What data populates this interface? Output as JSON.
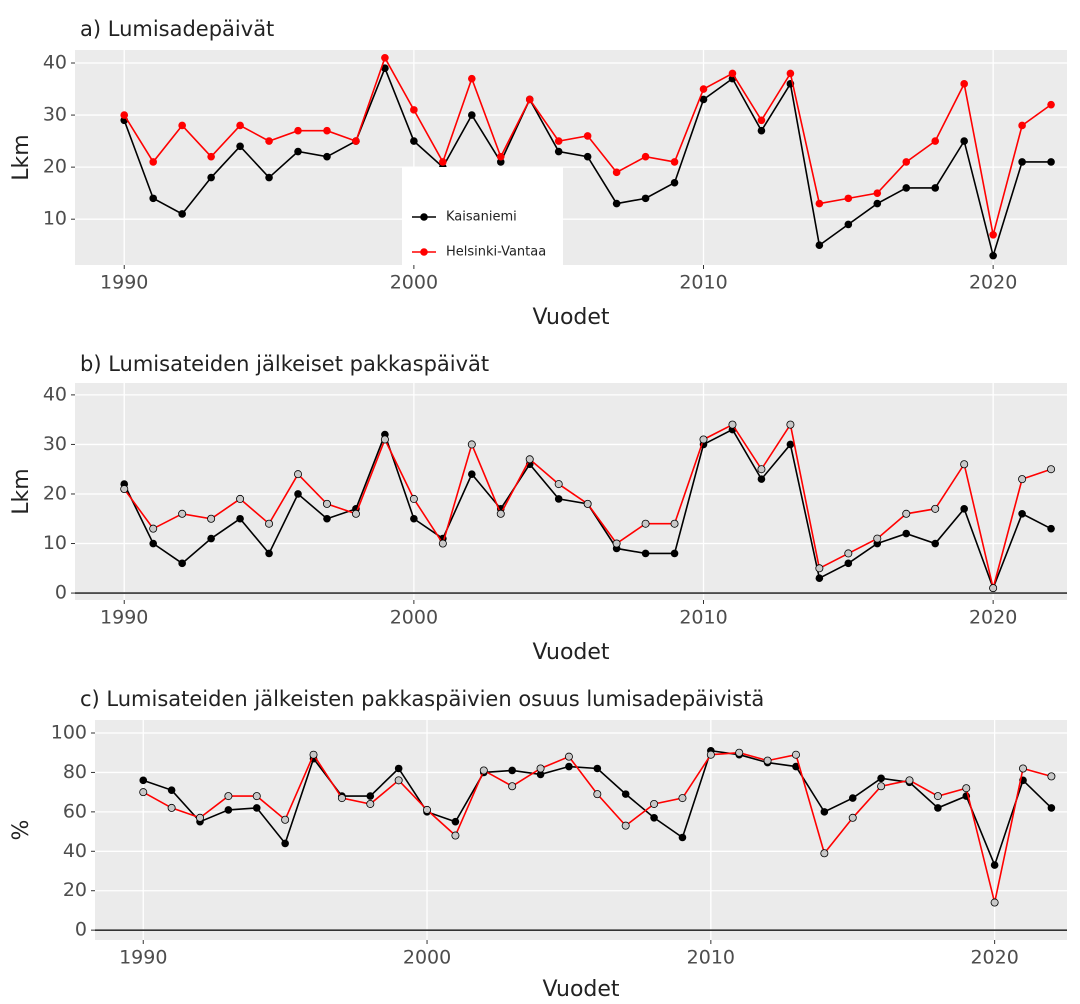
{
  "chart_data": [
    {
      "type": "line",
      "title": "a) Lumisadepäivät",
      "x_label": "Vuodet",
      "y_label": "Lkm",
      "x": [
        1990,
        1991,
        1992,
        1993,
        1994,
        1995,
        1996,
        1997,
        1998,
        1999,
        2000,
        2001,
        2002,
        2003,
        2004,
        2005,
        2006,
        2007,
        2008,
        2009,
        2010,
        2011,
        2012,
        2013,
        2014,
        2015,
        2016,
        2017,
        2018,
        2019,
        2020,
        2021,
        2022
      ],
      "xlim": [
        1988.3,
        2022.55
      ],
      "xticks": [
        1990,
        2000,
        2010,
        2020
      ],
      "ylim": [
        1.2,
        42.5
      ],
      "yticks": [
        10,
        20,
        30,
        40
      ],
      "grid": true,
      "legend": "center",
      "series": [
        {
          "name": "Kaisaniemi",
          "color": "#000000",
          "marker": "filled",
          "values": [
            29,
            14,
            11,
            18,
            24,
            18,
            23,
            22,
            25,
            39,
            25,
            20,
            30,
            21,
            33,
            23,
            22,
            13,
            14,
            17,
            33,
            37,
            27,
            36,
            5,
            9,
            13,
            16,
            16,
            25,
            3,
            21,
            21
          ]
        },
        {
          "name": "Helsinki-Vantaa",
          "color": "#ff0000",
          "marker": "filled",
          "values": [
            30,
            21,
            28,
            22,
            28,
            25,
            27,
            27,
            25,
            41,
            31,
            21,
            37,
            22,
            33,
            25,
            26,
            19,
            22,
            21,
            35,
            38,
            29,
            38,
            13,
            14,
            15,
            21,
            25,
            36,
            7,
            28,
            32
          ]
        }
      ]
    },
    {
      "type": "line",
      "title": "b) Lumisateiden jälkeiset pakkaspäivät",
      "x_label": "Vuodet",
      "y_label": "Lkm",
      "x": [
        1990,
        1991,
        1992,
        1993,
        1994,
        1995,
        1996,
        1997,
        1998,
        1999,
        2000,
        2001,
        2002,
        2003,
        2004,
        2005,
        2006,
        2007,
        2008,
        2009,
        2010,
        2011,
        2012,
        2013,
        2014,
        2015,
        2016,
        2017,
        2018,
        2019,
        2020,
        2021,
        2022
      ],
      "xlim": [
        1988.3,
        2022.55
      ],
      "xticks": [
        1990,
        2000,
        2010,
        2020
      ],
      "ylim": [
        -1.4,
        42.4
      ],
      "yticks": [
        0,
        10,
        20,
        30,
        40
      ],
      "grid": true,
      "reference_line": 0,
      "series": [
        {
          "name": "Kaisaniemi",
          "color": "#000000",
          "marker": "filled",
          "values": [
            22,
            10,
            6,
            11,
            15,
            8,
            20,
            15,
            17,
            32,
            15,
            11,
            24,
            17,
            26,
            19,
            18,
            9,
            8,
            8,
            30,
            33,
            23,
            30,
            3,
            6,
            10,
            12,
            10,
            17,
            1,
            16,
            13
          ]
        },
        {
          "name": "Helsinki-Vantaa",
          "color": "#ff0000",
          "marker": "open",
          "values": [
            21,
            13,
            16,
            15,
            19,
            14,
            24,
            18,
            16,
            31,
            19,
            10,
            30,
            16,
            27,
            22,
            18,
            10,
            14,
            14,
            31,
            34,
            25,
            34,
            5,
            8,
            11,
            16,
            17,
            26,
            1,
            23,
            25
          ]
        }
      ]
    },
    {
      "type": "line",
      "title": "c) Lumisateiden jälkeisten pakkaspäivien osuus lumisadepäivistä",
      "x_label": "Vuodet",
      "y_label": "%",
      "x": [
        1990,
        1991,
        1992,
        1993,
        1994,
        1995,
        1996,
        1997,
        1998,
        1999,
        2000,
        2001,
        2002,
        2003,
        2004,
        2005,
        2006,
        2007,
        2008,
        2009,
        2010,
        2011,
        2012,
        2013,
        2014,
        2015,
        2016,
        2017,
        2018,
        2019,
        2020,
        2021,
        2022
      ],
      "xlim": [
        1988.3,
        2022.55
      ],
      "xticks": [
        1990,
        2000,
        2010,
        2020
      ],
      "ylim": [
        -5,
        106.6
      ],
      "yticks": [
        0,
        20,
        40,
        60,
        80,
        100
      ],
      "grid": true,
      "reference_line": 0,
      "series": [
        {
          "name": "Kaisaniemi",
          "color": "#000000",
          "marker": "filled",
          "values": [
            76,
            71,
            55,
            61,
            62,
            44,
            87,
            68,
            68,
            82,
            60,
            55,
            80,
            81,
            79,
            83,
            82,
            69,
            57,
            47,
            91,
            89,
            85,
            83,
            60,
            67,
            77,
            75,
            62,
            68,
            33,
            76,
            62
          ]
        },
        {
          "name": "Helsinki-Vantaa",
          "color": "#ff0000",
          "marker": "open",
          "values": [
            70,
            62,
            57,
            68,
            68,
            56,
            89,
            67,
            64,
            76,
            61,
            48,
            81,
            73,
            82,
            88,
            69,
            53,
            64,
            67,
            89,
            90,
            86,
            89,
            39,
            57,
            73,
            76,
            68,
            72,
            14,
            82,
            78
          ]
        }
      ]
    }
  ]
}
